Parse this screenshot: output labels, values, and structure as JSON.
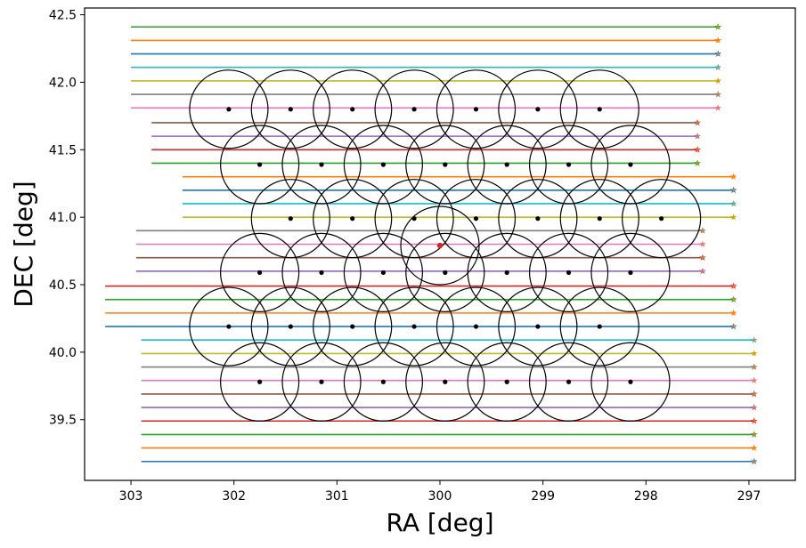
{
  "chart_data": {
    "type": "scatter",
    "xlabel": "RA [deg]",
    "ylabel": "DEC [deg]",
    "xlim": [
      303.45,
      296.55
    ],
    "ylim": [
      39.05,
      42.55
    ],
    "x_ticks": [
      303,
      302,
      301,
      300,
      299,
      298,
      297
    ],
    "x_tick_labels": [
      "303",
      "302",
      "301",
      "300",
      "299",
      "298",
      "297"
    ],
    "y_ticks": [
      39.5,
      40.0,
      40.5,
      41.0,
      41.5,
      42.0,
      42.5
    ],
    "y_tick_labels": [
      "39.5",
      "40.0",
      "40.5",
      "41.0",
      "41.5",
      "42.0",
      "42.5"
    ],
    "color_cycle": [
      "#1f77b4",
      "#ff7f0e",
      "#2ca02c",
      "#d62728",
      "#9467bd",
      "#8c564b",
      "#e377c2",
      "#7f7f7f",
      "#bcbd22",
      "#17becf"
    ],
    "scan_groups": [
      {
        "dec_start": 42.41,
        "count": 7,
        "dec_step": -0.1,
        "ra_start": 303.0,
        "ra_end": 297.3,
        "colors": [
          "#2ca02c",
          "#ff7f0e",
          "#1f77b4",
          "#17becf",
          "#bcbd22",
          "#7f7f7f",
          "#e377c2"
        ]
      },
      {
        "dec_start": 41.7,
        "count": 4,
        "dec_step": -0.1,
        "ra_start": 302.8,
        "ra_end": 297.5,
        "colors": [
          "#8c564b",
          "#9467bd",
          "#d62728",
          "#2ca02c"
        ]
      },
      {
        "dec_start": 41.3,
        "count": 4,
        "dec_step": -0.1,
        "ra_start": 302.5,
        "ra_end": 297.15,
        "colors": [
          "#ff7f0e",
          "#1f77b4",
          "#17becf",
          "#bcbd22"
        ]
      },
      {
        "dec_start": 40.9,
        "count": 4,
        "dec_step": -0.1,
        "ra_start": 302.95,
        "ra_end": 297.45,
        "colors": [
          "#7f7f7f",
          "#e377c2",
          "#8c564b",
          "#9467bd"
        ]
      },
      {
        "dec_start": 40.49,
        "count": 4,
        "dec_step": -0.1,
        "ra_start": 303.25,
        "ra_end": 297.15,
        "colors": [
          "#d62728",
          "#2ca02c",
          "#ff7f0e",
          "#1f77b4"
        ]
      },
      {
        "dec_start": 40.09,
        "count": 10,
        "dec_step": -0.1,
        "ra_start": 302.9,
        "ra_end": 296.95,
        "colors": [
          "#17becf",
          "#bcbd22",
          "#7f7f7f",
          "#e377c2",
          "#8c564b",
          "#9467bd",
          "#d62728",
          "#2ca02c",
          "#ff7f0e",
          "#1f77b4"
        ]
      }
    ],
    "scan_end_marker": "star",
    "scan_end_marker_color": "#ff7f0e",
    "pointings": [
      {
        "dec": 41.8,
        "ra": [
          302.05,
          301.45,
          300.85,
          300.25,
          299.65,
          299.05,
          298.45
        ]
      },
      {
        "dec": 41.39,
        "ra": [
          301.75,
          301.15,
          300.55,
          299.95,
          299.35,
          298.75,
          298.15
        ]
      },
      {
        "dec": 40.99,
        "ra": [
          301.45,
          300.85,
          300.25,
          299.65,
          299.05,
          298.45,
          297.85
        ]
      },
      {
        "dec": 40.59,
        "ra": [
          301.75,
          301.15,
          300.55,
          299.95,
          299.35,
          298.75,
          298.15
        ]
      },
      {
        "dec": 40.19,
        "ra": [
          302.05,
          301.45,
          300.85,
          300.25,
          299.65,
          299.05,
          298.45
        ]
      },
      {
        "dec": 39.78,
        "ra": [
          301.75,
          301.15,
          300.55,
          299.95,
          299.35,
          298.75,
          298.15
        ]
      }
    ],
    "pointing_circle_radius_deg": 0.29,
    "pointing_color": "#000000",
    "center_marker": {
      "ra": 300.0,
      "dec": 40.79,
      "color": "#d62728"
    }
  }
}
